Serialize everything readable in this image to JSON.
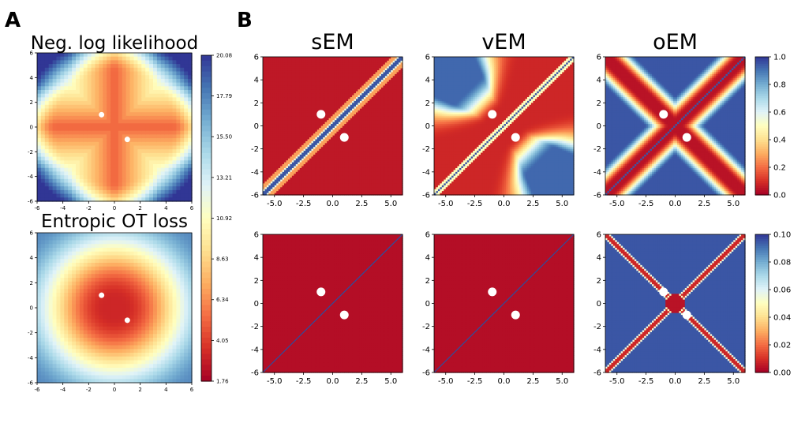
{
  "figure": {
    "panel_a_letter": "A",
    "panel_b_letter": "B"
  },
  "colors": {
    "cmap": [
      "#a50026",
      "#d73027",
      "#f46d43",
      "#fdae61",
      "#fee090",
      "#ffffbf",
      "#e0f3f8",
      "#abd9e9",
      "#74add1",
      "#4575b4",
      "#313695"
    ],
    "point": "#ffffff",
    "diagonal": "#2b4fa0"
  },
  "chart_data": [
    {
      "id": "A-top",
      "type": "heatmap",
      "title": "Neg. log likelihood",
      "field": "nll",
      "xlim": [
        -6,
        6
      ],
      "ylim": [
        -6,
        6
      ],
      "xticks": [
        "-6",
        "-4",
        "-2",
        "0",
        "2",
        "4",
        "6"
      ],
      "yticks": [
        "-6",
        "-4",
        "-2",
        "0",
        "2",
        "4",
        "6"
      ],
      "points": [
        [
          -1,
          1
        ],
        [
          1,
          -1
        ]
      ]
    },
    {
      "id": "A-bottom",
      "type": "heatmap",
      "title": "Entropic OT loss",
      "field": "ot",
      "xlim": [
        -6,
        6
      ],
      "ylim": [
        -6,
        6
      ],
      "xticks": [
        "-6",
        "-4",
        "-2",
        "0",
        "2",
        "4",
        "6"
      ],
      "yticks": [
        "-6",
        "-4",
        "-2",
        "0",
        "2",
        "4",
        "6"
      ],
      "points": [
        [
          -1,
          1
        ],
        [
          1,
          -1
        ]
      ]
    },
    {
      "id": "A-colorbar",
      "type": "colorbar",
      "min": 1.76,
      "max": 20.08,
      "ticks": [
        "20.08",
        "17.79",
        "15.50",
        "13.21",
        "10.92",
        "8.63",
        "6.34",
        "4.05",
        "1.76"
      ]
    },
    {
      "id": "B-sEM-top",
      "type": "heatmap",
      "title": "sEM",
      "field": "sEM1",
      "xlim": [
        -6,
        6
      ],
      "ylim": [
        -6,
        6
      ],
      "xticks": [
        "-5.0",
        "-2.5",
        "0.0",
        "2.5",
        "5.0"
      ],
      "yticks": [
        "-6",
        "-4",
        "-2",
        "0",
        "2",
        "4",
        "6"
      ],
      "points": [
        [
          -1,
          1
        ],
        [
          1,
          -1
        ]
      ]
    },
    {
      "id": "B-vEM-top",
      "type": "heatmap",
      "title": "vEM",
      "field": "vEM1",
      "xlim": [
        -6,
        6
      ],
      "ylim": [
        -6,
        6
      ],
      "xticks": [
        "-5.0",
        "-2.5",
        "0.0",
        "2.5",
        "5.0"
      ],
      "yticks": [
        "-6",
        "-4",
        "-2",
        "0",
        "2",
        "4",
        "6"
      ],
      "points": [
        [
          -1,
          1
        ],
        [
          1,
          -1
        ]
      ]
    },
    {
      "id": "B-oEM-top",
      "type": "heatmap",
      "title": "oEM",
      "field": "oEM1",
      "xlim": [
        -6,
        6
      ],
      "ylim": [
        -6,
        6
      ],
      "xticks": [
        "-5.0",
        "-2.5",
        "0.0",
        "2.5",
        "5.0"
      ],
      "yticks": [
        "-6",
        "-4",
        "-2",
        "0",
        "2",
        "4",
        "6"
      ],
      "points": [
        [
          -1,
          1
        ],
        [
          1,
          -1
        ]
      ]
    },
    {
      "id": "B-colorbar-top",
      "type": "colorbar",
      "min": 0.0,
      "max": 1.0,
      "ticks": [
        "1.0",
        "0.8",
        "0.6",
        "0.4",
        "0.2",
        "0.0"
      ]
    },
    {
      "id": "B-sEM-bottom",
      "type": "heatmap",
      "title": "",
      "field": "sEM2",
      "xlim": [
        -6,
        6
      ],
      "ylim": [
        -6,
        6
      ],
      "xticks": [
        "-5.0",
        "-2.5",
        "0.0",
        "2.5",
        "5.0"
      ],
      "yticks": [
        "-6",
        "-4",
        "-2",
        "0",
        "2",
        "4",
        "6"
      ],
      "points": [
        [
          -1,
          1
        ],
        [
          1,
          -1
        ]
      ]
    },
    {
      "id": "B-vEM-bottom",
      "type": "heatmap",
      "title": "",
      "field": "vEM2",
      "xlim": [
        -6,
        6
      ],
      "ylim": [
        -6,
        6
      ],
      "xticks": [
        "-5.0",
        "-2.5",
        "0.0",
        "2.5",
        "5.0"
      ],
      "yticks": [
        "-6",
        "-4",
        "-2",
        "0",
        "2",
        "4",
        "6"
      ],
      "points": [
        [
          -1,
          1
        ],
        [
          1,
          -1
        ]
      ]
    },
    {
      "id": "B-oEM-bottom",
      "type": "heatmap",
      "title": "",
      "field": "oEM2",
      "xlim": [
        -6,
        6
      ],
      "ylim": [
        -6,
        6
      ],
      "xticks": [
        "-5.0",
        "-2.5",
        "0.0",
        "2.5",
        "5.0"
      ],
      "yticks": [
        "-6",
        "-4",
        "-2",
        "0",
        "2",
        "4",
        "6"
      ],
      "points": [
        [
          -1,
          1
        ],
        [
          1,
          -1
        ]
      ]
    },
    {
      "id": "B-colorbar-bottom",
      "type": "colorbar",
      "min": 0.0,
      "max": 0.1,
      "ticks": [
        "0.10",
        "0.08",
        "0.06",
        "0.04",
        "0.02",
        "0.00"
      ]
    }
  ]
}
